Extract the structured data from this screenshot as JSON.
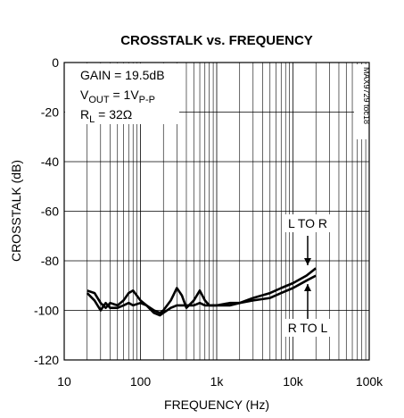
{
  "chart_data": {
    "type": "line",
    "title": "CROSSTALK vs. FREQUENCY",
    "x_label": "FREQUENCY (Hz)",
    "y_label": "CROSSTALK (dB)",
    "xlog": true,
    "grid": true,
    "minor_grid": true,
    "xlim": [
      10,
      100000
    ],
    "xticks": [
      10,
      100,
      {
        "value": 1000,
        "label": "1k"
      },
      {
        "value": 10000,
        "label": "10k"
      },
      {
        "value": 100000,
        "label": "100k"
      }
    ],
    "ylim": [
      -120,
      0
    ],
    "yticks": [
      -120,
      -100,
      -80,
      -60,
      -40,
      -20,
      0
    ],
    "x": [
      20,
      25,
      30,
      35,
      40,
      50,
      60,
      70,
      80,
      100,
      120,
      150,
      180,
      200,
      250,
      300,
      350,
      400,
      500,
      600,
      700,
      800,
      1000,
      1500,
      2000,
      3000,
      5000,
      7000,
      10000,
      15000,
      20000
    ],
    "series": [
      {
        "name": "L TO R",
        "color": "#000000",
        "values": [
          -92,
          -93,
          -97,
          -99,
          -97,
          -98,
          -96,
          -93,
          -92,
          -96,
          -98,
          -100,
          -101,
          -100,
          -96,
          -91,
          -94,
          -99,
          -96,
          -92,
          -96,
          -98,
          -98,
          -98,
          -97,
          -95,
          -93,
          -91,
          -89,
          -86,
          -83
        ]
      },
      {
        "name": "R TO L",
        "color": "#000000",
        "values": [
          -93,
          -96,
          -100,
          -97,
          -99,
          -99,
          -98,
          -97,
          -98,
          -97,
          -98,
          -101,
          -102,
          -101,
          -99,
          -98,
          -98,
          -98,
          -98,
          -97,
          -98,
          -98,
          -98,
          -97,
          -97,
          -96,
          -95,
          -93,
          -91,
          -88,
          -86
        ]
      }
    ],
    "conditions": [
      [
        {
          "text": "GAIN = 19.5dB",
          "sub": false
        }
      ],
      [
        {
          "text": "V",
          "sub": false
        },
        {
          "text": "OUT",
          "sub": true
        },
        {
          "text": " = 1V",
          "sub": false
        },
        {
          "text": "P-P",
          "sub": true
        }
      ],
      [
        {
          "text": "R",
          "sub": false
        },
        {
          "text": "L",
          "sub": true
        },
        {
          "text": " = 32Ω",
          "sub": false
        }
      ]
    ],
    "watermark": "MAX9729 toc18"
  }
}
